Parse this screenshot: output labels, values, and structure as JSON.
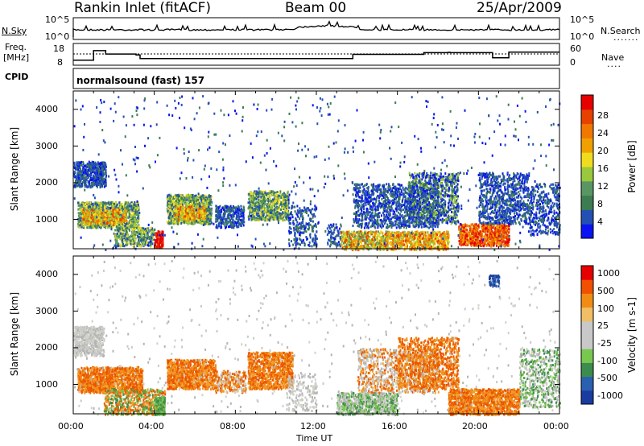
{
  "header": {
    "station": "Rankin Inlet (fitACF)",
    "beam": "Beam 00",
    "date": "25/Apr/2009"
  },
  "panels": {
    "nsky": {
      "label": "N.Sky",
      "tick_top": "10^5",
      "tick_bottom": "10^0",
      "right_label": "N.Search",
      "right_tick_top": "10^5",
      "right_tick_bottom": "10^0"
    },
    "freq": {
      "label_1": "Freq.",
      "label_2": "[MHz]",
      "tick_top": "18",
      "tick_bottom": "8",
      "right_label": "Nave",
      "right_tick_top": "60",
      "right_tick_bottom": "0"
    },
    "cpid": {
      "label": "CPID",
      "value": "normalsound (fast) 157"
    }
  },
  "colors": {
    "power_scale": [
      "#0a14f0",
      "#2450b4",
      "#3c7c50",
      "#5a9664",
      "#9ac83c",
      "#f0dc1e",
      "#f0a000",
      "#f07800",
      "#e64100",
      "#e60000"
    ],
    "velocity_scale": [
      "#e60000",
      "#f05000",
      "#f08c14",
      "#f0be64",
      "#c8c8c8",
      "#c8c8c8",
      "#78c850",
      "#3c8c50",
      "#2a60b0",
      "#1a3ca0"
    ]
  },
  "chart_data": [
    {
      "type": "heatmap",
      "name": "power",
      "ylabel": "Slant Range [km]",
      "y_ticks": [
        "1000",
        "2000",
        "3000",
        "4000"
      ],
      "ylim": [
        200,
        4500
      ],
      "colorbar_label": "Power [dB]",
      "colorbar_ticks": [
        "4",
        "8",
        "12",
        "16",
        "20",
        "24",
        "28"
      ],
      "colorbar_range": [
        0,
        32
      ]
    },
    {
      "type": "heatmap",
      "name": "velocity",
      "ylabel": "Slant Range [km]",
      "y_ticks": [
        "1000",
        "2000",
        "3000",
        "4000"
      ],
      "ylim": [
        200,
        4500
      ],
      "xlabel": "Time UT",
      "x_ticks": [
        "00:00",
        "04:00",
        "08:00",
        "12:00",
        "16:00",
        "20:00",
        "00:00"
      ],
      "xlim_hours": [
        0,
        24
      ],
      "colorbar_label": "Velocity [m s-1]",
      "colorbar_ticks": [
        "1000",
        "500",
        "100",
        "25",
        "-25",
        "-100",
        "-500",
        "-1000"
      ]
    },
    {
      "type": "line",
      "name": "freq",
      "x_hours": [
        0,
        1,
        1.6,
        3.1,
        3.3,
        13.6,
        13.8,
        17.1,
        17.3,
        18.5,
        18.6,
        20.5,
        20.7,
        21.3,
        21.5,
        24
      ],
      "y_mhz": [
        9.5,
        15.2,
        13.2,
        12.6,
        10.5,
        10.5,
        13.0,
        13.0,
        14.0,
        14.2,
        14.0,
        14.0,
        11.0,
        11.0,
        14.3,
        14.3
      ]
    }
  ]
}
